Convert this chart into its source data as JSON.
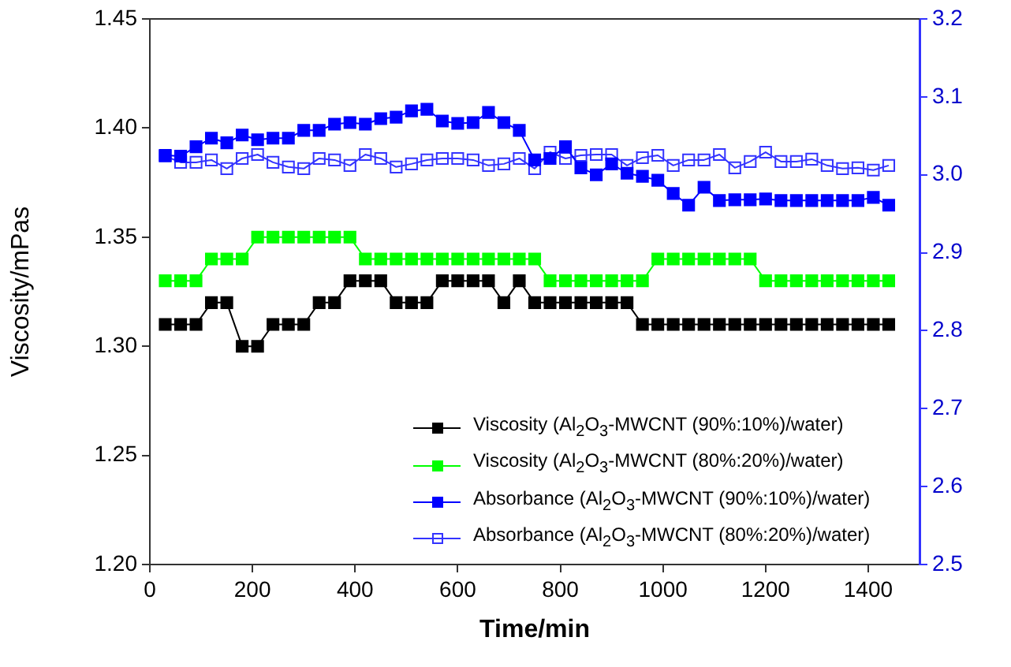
{
  "chart_data": {
    "type": "line",
    "xlabel": "Time/min",
    "ylabel": "Viscosity/mPas",
    "x": [
      30,
      60,
      90,
      120,
      150,
      180,
      210,
      240,
      270,
      300,
      330,
      360,
      390,
      420,
      450,
      480,
      510,
      540,
      570,
      600,
      630,
      660,
      690,
      720,
      750,
      780,
      810,
      840,
      870,
      900,
      930,
      960,
      990,
      1020,
      1050,
      1080,
      1110,
      1140,
      1170,
      1200,
      1230,
      1260,
      1290,
      1320,
      1350,
      1380,
      1410,
      1440
    ],
    "xlim": [
      0,
      1500
    ],
    "xticks": [
      0,
      200,
      400,
      600,
      800,
      1000,
      1200,
      1400
    ],
    "ylim": [
      1.2,
      1.45
    ],
    "yticks": [
      {
        "value": 1.2,
        "label": "1.20"
      },
      1.25,
      {
        "value": 1.3,
        "label": "1.30"
      },
      1.35,
      {
        "value": 1.4,
        "label": "1.40"
      },
      1.45
    ],
    "y2lim": [
      2.5,
      3.2
    ],
    "y2ticks": [
      2.5,
      2.6,
      2.7,
      2.8,
      2.9,
      {
        "value": 3.0,
        "label": "3.0"
      },
      3.1,
      3.2
    ],
    "grid": false,
    "legend": "bottom right",
    "marker": "square",
    "line_style": "solid",
    "series": [
      {
        "name": "Viscosity (Al$_{2}$O$_{3}$-MWCNT (90%:10%)/water)",
        "color": "#000000",
        "values": [
          1.31,
          1.31,
          1.31,
          1.32,
          1.32,
          1.3,
          1.3,
          1.31,
          1.31,
          1.31,
          1.32,
          1.32,
          1.33,
          1.33,
          1.33,
          1.32,
          1.32,
          1.32,
          1.33,
          1.33,
          1.33,
          1.33,
          1.32,
          1.33,
          1.32,
          1.32,
          1.32,
          1.32,
          1.32,
          1.32,
          1.32,
          1.31,
          1.31,
          1.31,
          1.31,
          1.31,
          1.31,
          1.31,
          1.31,
          1.31,
          1.31,
          1.31,
          1.31,
          1.31,
          1.31,
          1.31,
          1.31,
          1.31
        ]
      },
      {
        "name": "Viscosity (Al$_{2}$O$_{3}$-MWCNT (80%:20%)/water)",
        "color": "#00ff00",
        "values": [
          1.33,
          1.33,
          1.33,
          1.34,
          1.34,
          1.34,
          1.35,
          1.35,
          1.35,
          1.35,
          1.35,
          1.35,
          1.35,
          1.34,
          1.34,
          1.34,
          1.34,
          1.34,
          1.34,
          1.34,
          1.34,
          1.34,
          1.34,
          1.34,
          1.34,
          1.33,
          1.33,
          1.33,
          1.33,
          1.33,
          1.33,
          1.33,
          1.34,
          1.34,
          1.34,
          1.34,
          1.34,
          1.34,
          1.34,
          1.33,
          1.33,
          1.33,
          1.33,
          1.33,
          1.33,
          1.33,
          1.33,
          1.33
        ]
      },
      {
        "name": "Absorbance (Al$_{2}$O$_{3}$-MWCNT (90%:10%)/water)",
        "color": "#0000ff",
        "axis": "y2",
        "values": [
          3.025,
          3.024,
          3.036,
          3.047,
          3.041,
          3.051,
          3.045,
          3.047,
          3.047,
          3.057,
          3.057,
          3.065,
          3.067,
          3.065,
          3.072,
          3.074,
          3.082,
          3.084,
          3.069,
          3.066,
          3.067,
          3.08,
          3.067,
          3.057,
          3.019,
          3.021,
          3.036,
          3.009,
          3.0,
          3.014,
          3.002,
          2.998,
          2.993,
          2.976,
          2.961,
          2.984,
          2.967,
          2.968,
          2.968,
          2.969,
          2.967,
          2.967,
          2.967,
          2.967,
          2.967,
          2.967,
          2.971,
          2.961
        ]
      },
      {
        "name": "Absorbance (Al$_{2}$O$_{3}$-MWCNT (80%:20%)/water)",
        "color": "#3333ff",
        "axis": "y2",
        "values": [
          3.024,
          3.016,
          3.016,
          3.019,
          3.008,
          3.021,
          3.026,
          3.016,
          3.01,
          3.008,
          3.021,
          3.019,
          3.012,
          3.026,
          3.021,
          3.01,
          3.014,
          3.019,
          3.021,
          3.021,
          3.019,
          3.012,
          3.014,
          3.021,
          3.008,
          3.029,
          3.021,
          3.025,
          3.026,
          3.026,
          3.012,
          3.022,
          3.025,
          3.012,
          3.019,
          3.019,
          3.026,
          3.009,
          3.017,
          3.029,
          3.017,
          3.017,
          3.02,
          3.012,
          3.008,
          3.009,
          3.006,
          3.012
        ]
      }
    ]
  }
}
